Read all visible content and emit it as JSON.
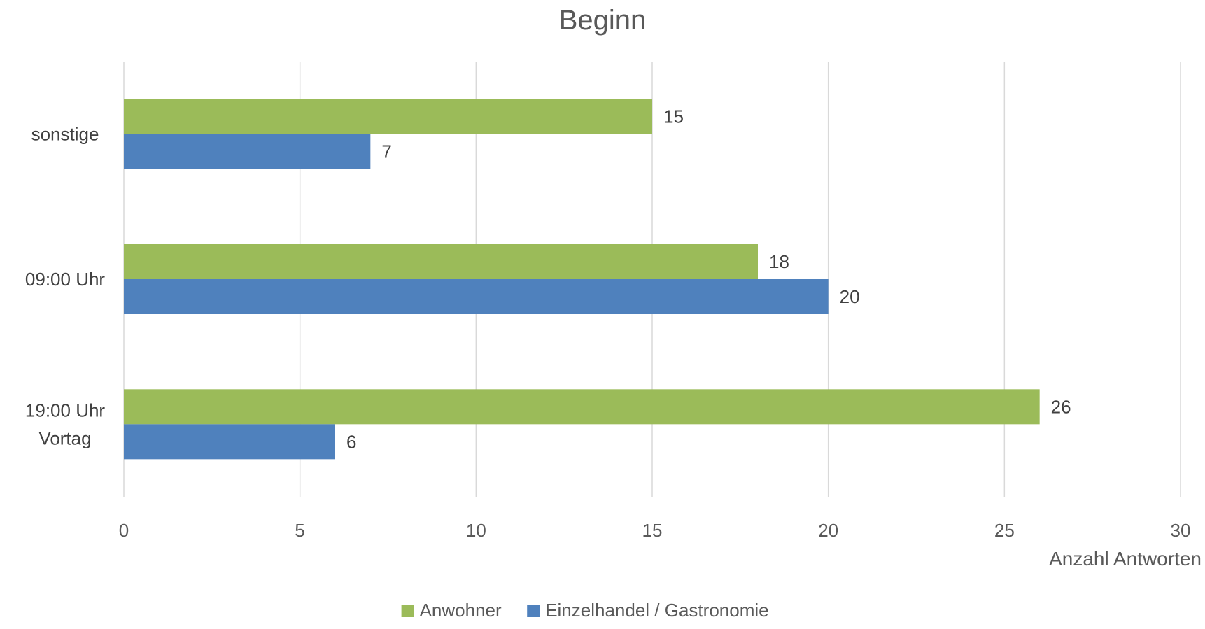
{
  "chart_data": {
    "type": "bar",
    "orientation": "horizontal",
    "title": "Beginn",
    "xlabel": "Anzahl Antworten",
    "ylabel": "",
    "categories": [
      "sonstige",
      "09:00 Uhr",
      "19:00 Uhr Vortag"
    ],
    "category_lines": [
      [
        "sonstige"
      ],
      [
        "09:00 Uhr"
      ],
      [
        "19:00 Uhr",
        "Vortag"
      ]
    ],
    "series": [
      {
        "name": "Anwohner",
        "values": [
          15,
          18,
          26
        ],
        "color": "#9bbb59"
      },
      {
        "name": "Einzelhandel / Gastronomie",
        "values": [
          7,
          20,
          6
        ],
        "color": "#4f81bd"
      }
    ],
    "xlim": [
      0,
      30
    ],
    "xticks": [
      0,
      5,
      10,
      15,
      20,
      25,
      30
    ],
    "grid": true,
    "data_labels": true,
    "legend_position": "bottom"
  }
}
